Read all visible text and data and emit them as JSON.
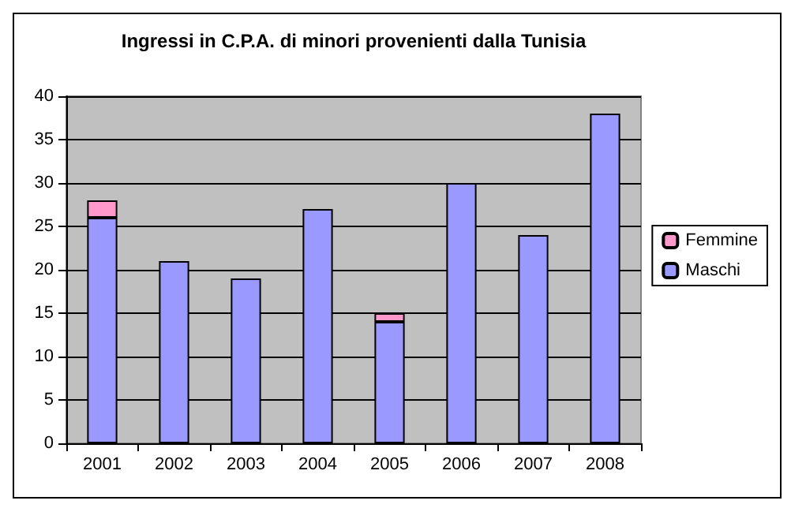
{
  "chart_data": {
    "type": "bar",
    "title": "Ingressi in C.P.A. di minori provenienti dalla Tunisia",
    "categories": [
      "2001",
      "2002",
      "2003",
      "2004",
      "2005",
      "2006",
      "2007",
      "2008"
    ],
    "stacked": true,
    "series": [
      {
        "name": "Maschi",
        "color": "#9999ff",
        "values": [
          26,
          21,
          19,
          27,
          14,
          30,
          24,
          38
        ]
      },
      {
        "name": "Femmine",
        "color": "#ff99cc",
        "values": [
          2,
          null,
          null,
          null,
          1,
          null,
          null,
          null
        ]
      }
    ],
    "ylim": [
      0,
      40
    ],
    "yticks": [
      0,
      5,
      10,
      15,
      20,
      25,
      30,
      35,
      40
    ],
    "grid": "y",
    "legend": "right"
  }
}
